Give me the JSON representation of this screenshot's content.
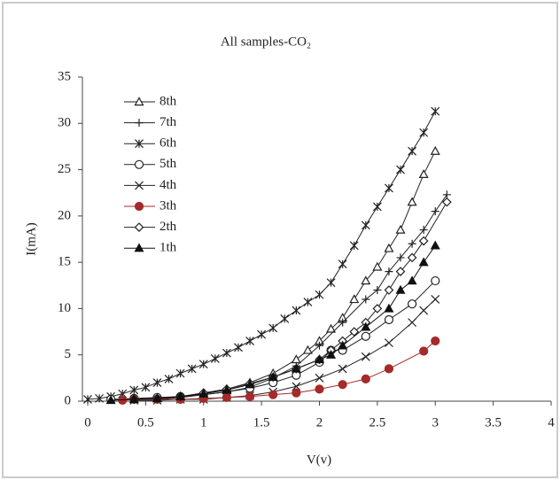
{
  "chart_data": {
    "type": "line",
    "title": "All samples-CO₂",
    "x_label": "V(v)",
    "y_label": "I(mA)",
    "xlim": [
      0,
      4
    ],
    "xticks": [
      0,
      0.5,
      1,
      1.5,
      2,
      2.5,
      3,
      3.5,
      4
    ],
    "ylim": [
      0,
      35
    ],
    "yticks": [
      0,
      5,
      10,
      15,
      20,
      25,
      30,
      35
    ],
    "grid": false,
    "legend": "upper left",
    "series": [
      {
        "name": "8th",
        "color": "#222222",
        "marker": "triangle-open",
        "x": [
          0.6,
          0.8,
          1.0,
          1.2,
          1.4,
          1.6,
          1.8,
          1.9,
          2.0,
          2.1,
          2.2,
          2.3,
          2.4,
          2.5,
          2.6,
          2.7,
          2.8,
          2.9,
          3.0
        ],
        "values": [
          0.3,
          0.5,
          0.8,
          1.3,
          2,
          3,
          4.5,
          5.5,
          6.5,
          7.8,
          9,
          11,
          13,
          14.5,
          16.5,
          18.5,
          21.5,
          24.5,
          27
        ]
      },
      {
        "name": "7th",
        "color": "#222222",
        "marker": "plus",
        "x": [
          0.6,
          0.8,
          1.0,
          1.2,
          1.4,
          1.6,
          1.8,
          2.0,
          2.2,
          2.4,
          2.5,
          2.6,
          2.7,
          2.8,
          2.9,
          3.0,
          3.1
        ],
        "values": [
          0.2,
          0.4,
          0.7,
          1,
          1.5,
          2.5,
          3.8,
          6,
          8.5,
          11,
          12,
          14,
          15.5,
          17,
          18.5,
          20.5,
          22.3
        ]
      },
      {
        "name": "6th",
        "color": "#222222",
        "marker": "asterisk",
        "x": [
          0,
          0.1,
          0.2,
          0.3,
          0.4,
          0.5,
          0.6,
          0.7,
          0.8,
          0.9,
          1.0,
          1.1,
          1.2,
          1.3,
          1.4,
          1.5,
          1.6,
          1.7,
          1.8,
          1.9,
          2.0,
          2.1,
          2.2,
          2.3,
          2.4,
          2.5,
          2.6,
          2.7,
          2.8,
          2.9,
          3.0
        ],
        "values": [
          0.2,
          0.3,
          0.5,
          0.8,
          1.2,
          1.5,
          2,
          2.4,
          3,
          3.5,
          4,
          4.6,
          5.2,
          5.8,
          6.5,
          7.2,
          7.9,
          8.9,
          9.8,
          10.7,
          11.5,
          12.8,
          14.8,
          16.8,
          19,
          21,
          23,
          25,
          27,
          29,
          31.3
        ]
      },
      {
        "name": "5th",
        "color": "#222222",
        "marker": "circle-open",
        "x": [
          0.2,
          0.4,
          0.6,
          0.8,
          1.0,
          1.2,
          1.4,
          1.6,
          1.8,
          2.0,
          2.1,
          2.2,
          2.4,
          2.6,
          2.8,
          3.0
        ],
        "values": [
          0.2,
          0.3,
          0.4,
          0.5,
          0.7,
          1,
          1.4,
          2,
          2.8,
          4.2,
          5.5,
          5.5,
          7,
          8.8,
          10.5,
          13
        ]
      },
      {
        "name": "4th",
        "color": "#222222",
        "marker": "cross",
        "x": [
          0.4,
          0.6,
          0.8,
          1.0,
          1.2,
          1.4,
          1.6,
          1.8,
          2.0,
          2.2,
          2.4,
          2.6,
          2.8,
          2.9,
          3.0
        ],
        "values": [
          0.1,
          0.1,
          0.2,
          0.2,
          0.4,
          0.6,
          1,
          1.6,
          2.5,
          3.5,
          4.8,
          6.3,
          8.5,
          9.8,
          11
        ]
      },
      {
        "name": "3th",
        "color": "#a52a2a",
        "marker": "circle-filled",
        "x": [
          0.3,
          0.4,
          0.6,
          0.8,
          1.0,
          1.2,
          1.4,
          1.6,
          1.8,
          2.0,
          2.2,
          2.4,
          2.6,
          2.9,
          3.0
        ],
        "values": [
          0.1,
          0.2,
          0.2,
          0.2,
          0.3,
          0.4,
          0.5,
          0.7,
          0.9,
          1.3,
          1.8,
          2.4,
          3.5,
          5.4,
          6.5
        ]
      },
      {
        "name": "2th",
        "color": "#222222",
        "marker": "diamond-open",
        "x": [
          0.4,
          0.6,
          0.8,
          1.0,
          1.2,
          1.4,
          1.6,
          1.8,
          2.0,
          2.1,
          2.2,
          2.3,
          2.4,
          2.5,
          2.6,
          2.7,
          2.8,
          2.9,
          3.1
        ],
        "values": [
          0.2,
          0.3,
          0.5,
          0.9,
          1.3,
          1.9,
          2.6,
          3.5,
          4.5,
          5.5,
          6.5,
          7.5,
          8.5,
          10,
          12,
          14,
          15.5,
          17.3,
          21.5
        ]
      },
      {
        "name": "1th",
        "color": "#111111",
        "marker": "triangle-filled",
        "x": [
          0.2,
          0.4,
          0.6,
          0.8,
          1.0,
          1.2,
          1.4,
          1.6,
          1.8,
          2.0,
          2.1,
          2.2,
          2.4,
          2.6,
          2.7,
          2.8,
          2.9,
          3.0
        ],
        "values": [
          0.1,
          0.2,
          0.3,
          0.5,
          0.8,
          1.2,
          1.8,
          2.6,
          3.5,
          4.5,
          5,
          6,
          8,
          10,
          12,
          13,
          15,
          16.8
        ]
      }
    ]
  }
}
